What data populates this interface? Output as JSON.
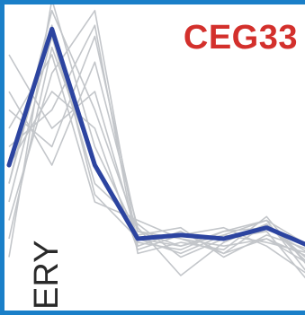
{
  "colors": {
    "frame": "#1a7fc8",
    "mean_line": "#2c44a0",
    "traces": "#c3c6ca",
    "title": "#d3302c",
    "row_label": "#2a2a2a"
  },
  "chart_data": {
    "type": "line",
    "title": "CEG33",
    "row_label": "ERY",
    "xlabel": "",
    "ylabel": "",
    "grid": false,
    "legend": "none",
    "x": [
      0,
      1,
      2,
      3,
      4,
      5,
      6,
      7
    ],
    "xlim": [
      0,
      7
    ],
    "ylim": [
      0,
      1
    ],
    "mean": [
      0.6,
      0.97,
      0.6,
      0.4,
      0.41,
      0.4,
      0.43,
      0.38
    ],
    "traces": [
      [
        0.55,
        1.02,
        0.75,
        0.42,
        0.38,
        0.42,
        0.45,
        0.3
      ],
      [
        0.7,
        0.9,
        0.5,
        0.45,
        0.4,
        0.38,
        0.4,
        0.35
      ],
      [
        0.45,
        0.85,
        1.02,
        0.38,
        0.42,
        0.36,
        0.44,
        0.33
      ],
      [
        0.9,
        0.7,
        0.8,
        0.4,
        0.36,
        0.41,
        0.39,
        0.36
      ],
      [
        0.5,
        0.95,
        0.55,
        0.44,
        0.35,
        0.4,
        0.42,
        0.28
      ],
      [
        0.65,
        0.75,
        0.98,
        0.36,
        0.39,
        0.37,
        0.46,
        0.32
      ],
      [
        0.35,
        1.05,
        0.65,
        0.41,
        0.43,
        0.35,
        0.41,
        0.37
      ],
      [
        0.8,
        0.6,
        0.88,
        0.43,
        0.3,
        0.39,
        0.44,
        0.34
      ],
      [
        0.6,
        0.8,
        0.7,
        0.37,
        0.41,
        0.43,
        0.38,
        0.3
      ],
      [
        0.4,
        0.92,
        0.6,
        0.39,
        0.37,
        0.42,
        0.43,
        0.36
      ],
      [
        0.75,
        0.65,
        0.95,
        0.42,
        0.4,
        0.36,
        0.4,
        0.33
      ],
      [
        0.55,
        0.98,
        0.52,
        0.4,
        0.38,
        0.41,
        0.45,
        0.38
      ]
    ]
  }
}
